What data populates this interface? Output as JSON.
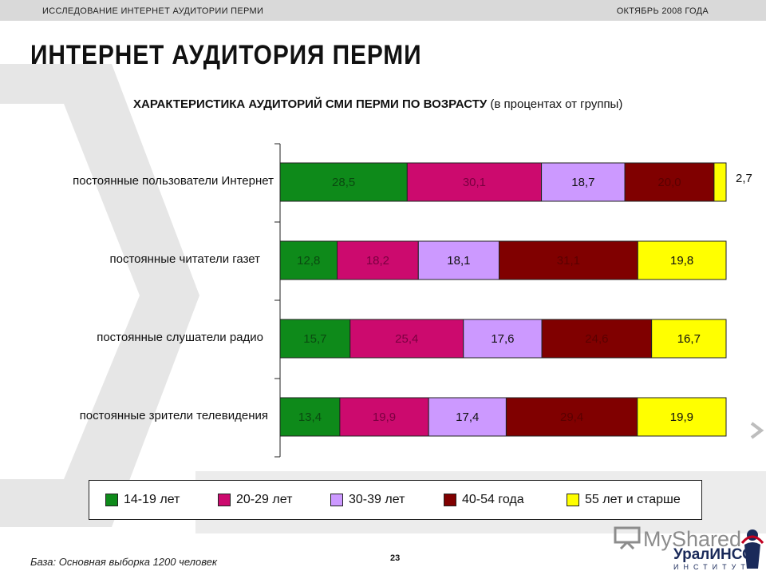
{
  "header": {
    "left": "ИССЛЕДОВАНИЕ ИНТЕРНЕТ АУДИТОРИИ ПЕРМИ",
    "right": "ОКТЯБРЬ 2008 ГОДА"
  },
  "page_title": "ИНТЕРНЕТ АУДИТОРИЯ ПЕРМИ",
  "subtitle": {
    "bold": "ХАРАКТЕРИСТИКА АУДИТОРИЙ СМИ ПЕРМИ ПО ВОЗРАСТУ",
    "normal": "(в процентах от группы)"
  },
  "footer": {
    "base": "База: Основная выборка 1200 человек",
    "page": "23",
    "watermark": "MyShared",
    "company": "УралИНСО",
    "company_sub": "ИНСТИТУТ"
  },
  "colors": {
    "14-19": "#0e8a1a",
    "20-29": "#cc0a6e",
    "30-39": "#cc99ff",
    "40-54": "#800000",
    "55+": "#ffff00",
    "background_shape": "#e3e3e3",
    "dark_text_on_bar": "#5a0000"
  },
  "chart_data": {
    "type": "bar",
    "orientation": "horizontal",
    "stacked": true,
    "xlim": [
      0,
      100
    ],
    "legend_position": "bottom",
    "categories": [
      "постоянные пользователи Интернет",
      "постоянные читатели газет",
      "постоянные слушатели радио",
      "постоянные зрители телевидения"
    ],
    "series": [
      {
        "name": "14-19 лет",
        "key": "14-19",
        "values": [
          28.5,
          12.8,
          15.7,
          13.4
        ],
        "labels": [
          "28,5",
          "12,8",
          "15,7",
          "13,4"
        ]
      },
      {
        "name": "20-29 лет",
        "key": "20-29",
        "values": [
          30.1,
          18.2,
          25.4,
          19.9
        ],
        "labels": [
          "30,1",
          "18,2",
          "25,4",
          "19,9"
        ]
      },
      {
        "name": "30-39 лет",
        "key": "30-39",
        "values": [
          18.7,
          18.1,
          17.6,
          17.4
        ],
        "labels": [
          "18,7",
          "18,1",
          "17,6",
          "17,4"
        ]
      },
      {
        "name": "40-54 года",
        "key": "40-54",
        "values": [
          20.0,
          31.1,
          24.6,
          29.4
        ],
        "labels": [
          "20,0",
          "31,1",
          "24,6",
          "29,4"
        ]
      },
      {
        "name": "55 лет и старше",
        "key": "55+",
        "values": [
          2.7,
          19.8,
          16.7,
          19.9
        ],
        "labels": [
          "2,7",
          "19,8",
          "16,7",
          "19,9"
        ]
      }
    ]
  }
}
